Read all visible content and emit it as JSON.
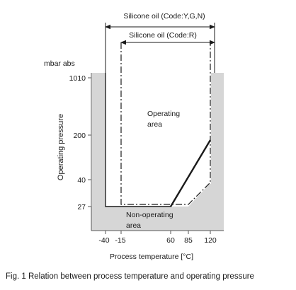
{
  "top_labels": {
    "silicone_ygn": "Silicone  oil (Code:Y,G,N)",
    "silicone_r": "Silicone  oil (Code:R)"
  },
  "axes": {
    "y_unit": "mbar  abs",
    "y_label": "Operating  pressure",
    "x_label": "Process  temperature [°C]",
    "y_ticks": [
      "1010",
      "200",
      "40",
      "27"
    ],
    "x_ticks": [
      "-40",
      "-15",
      "60",
      "85",
      "120"
    ]
  },
  "regions": {
    "operating": [
      "Operating",
      "area"
    ],
    "non_operating": [
      "Non-operating",
      "area"
    ]
  },
  "chart_data": {
    "type": "area",
    "xlabel": "Process  temperature [°C]",
    "ylabel": "Operating  pressure",
    "y_unit": "mbar  abs",
    "x_ticks": [
      -40,
      -15,
      60,
      85,
      120
    ],
    "y_ticks": [
      27,
      40,
      200,
      1010
    ],
    "series": [
      {
        "name": "Silicone  oil (Code:Y,G,N)",
        "style": "solid",
        "points": [
          [
            -40,
            1010
          ],
          [
            -40,
            27
          ],
          [
            60,
            27
          ],
          [
            120,
            200
          ],
          [
            120,
            1010
          ]
        ]
      },
      {
        "name": "Silicone  oil (Code:R)",
        "style": "dash-dot",
        "points": [
          [
            -15,
            1010
          ],
          [
            -15,
            27
          ],
          [
            85,
            27
          ],
          [
            120,
            40
          ],
          [
            120,
            1010
          ]
        ]
      }
    ]
  },
  "caption": "Fig. 1 Relation between process temperature and operating pressure"
}
